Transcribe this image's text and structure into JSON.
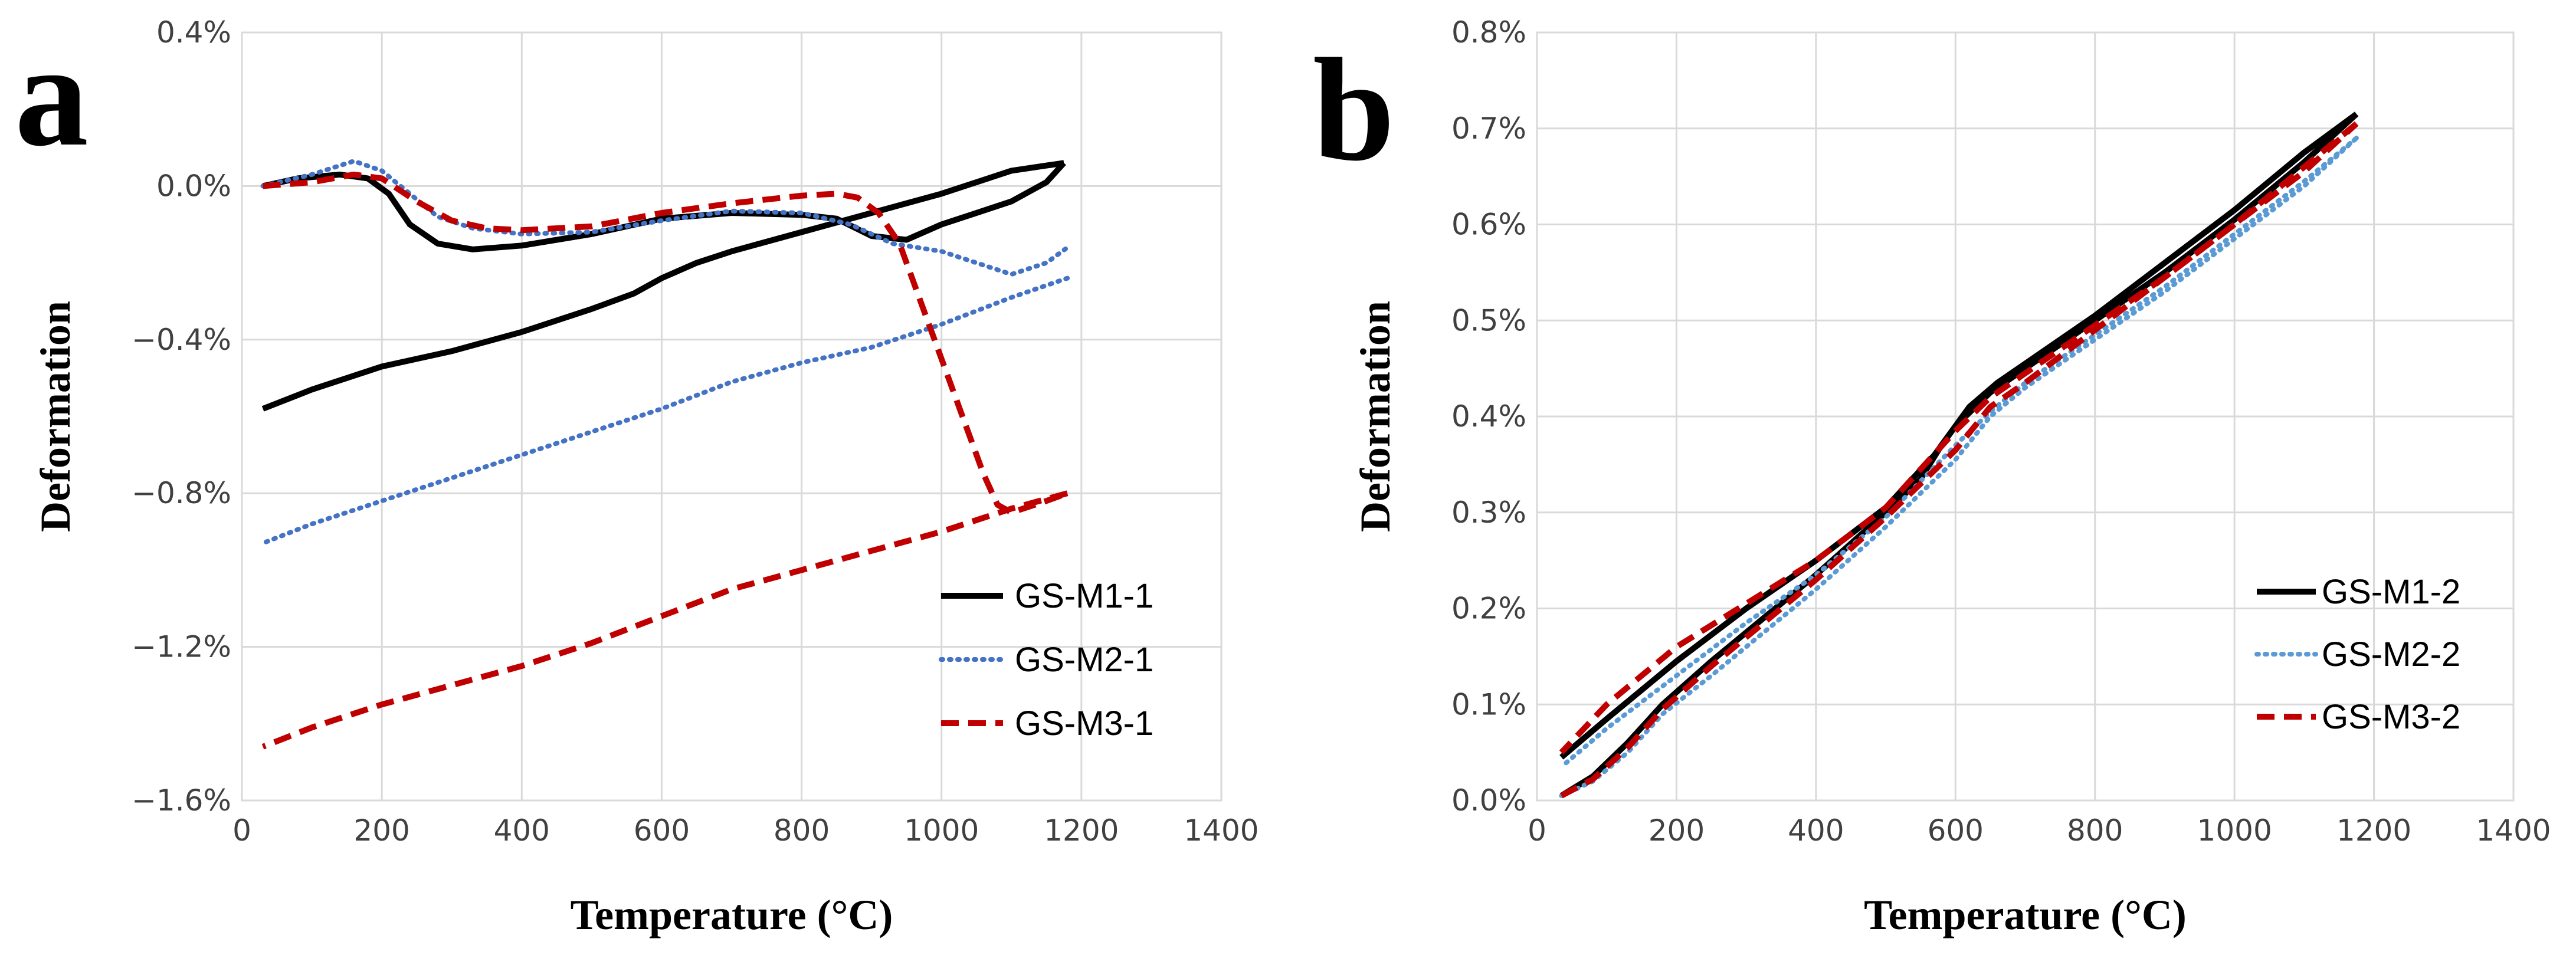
{
  "chart_data": [
    {
      "type": "line",
      "panel_label": "a",
      "xlabel": "Temperature (°C)",
      "ylabel": "Deformation",
      "xlim": [
        0,
        1400
      ],
      "ylim": [
        -1.6,
        0.4
      ],
      "x_ticks": [
        0,
        200,
        400,
        600,
        800,
        1000,
        1200,
        1400
      ],
      "x_tick_labels": [
        "0",
        "200",
        "400",
        "600",
        "800",
        "1000",
        "1200",
        "1400"
      ],
      "y_ticks": [
        0.4,
        0.0,
        -0.4,
        -0.8,
        -1.2,
        -1.6
      ],
      "y_tick_labels": [
        "0.4%",
        "0.0%",
        "−0.4%",
        "−0.8%",
        "−1.2%",
        "−1.6%"
      ],
      "grid": true,
      "legend_position": "bottom-right",
      "series": [
        {
          "name": "GS-M1-1",
          "color": "#000000",
          "style": "solid",
          "heating": [
            [
              30,
              0.0
            ],
            [
              80,
              0.02
            ],
            [
              140,
              0.03
            ],
            [
              180,
              0.02
            ],
            [
              210,
              -0.02
            ],
            [
              240,
              -0.1
            ],
            [
              280,
              -0.15
            ],
            [
              330,
              -0.165
            ],
            [
              400,
              -0.155
            ],
            [
              500,
              -0.125
            ],
            [
              600,
              -0.085
            ],
            [
              700,
              -0.07
            ],
            [
              800,
              -0.075
            ],
            [
              850,
              -0.085
            ],
            [
              900,
              -0.13
            ],
            [
              950,
              -0.14
            ],
            [
              1000,
              -0.1
            ],
            [
              1050,
              -0.07
            ],
            [
              1100,
              -0.04
            ],
            [
              1150,
              0.01
            ],
            [
              1175,
              0.06
            ]
          ],
          "cooling": [
            [
              1175,
              0.06
            ],
            [
              1100,
              0.04
            ],
            [
              1000,
              -0.02
            ],
            [
              900,
              -0.07
            ],
            [
              800,
              -0.12
            ],
            [
              700,
              -0.17
            ],
            [
              650,
              -0.2
            ],
            [
              600,
              -0.24
            ],
            [
              560,
              -0.28
            ],
            [
              500,
              -0.32
            ],
            [
              400,
              -0.38
            ],
            [
              300,
              -0.43
            ],
            [
              200,
              -0.47
            ],
            [
              100,
              -0.53
            ],
            [
              30,
              -0.58
            ]
          ]
        },
        {
          "name": "GS-M2-1",
          "color": "#4472c4",
          "style": "dotted",
          "heating": [
            [
              30,
              0.0
            ],
            [
              100,
              0.03
            ],
            [
              160,
              0.065
            ],
            [
              200,
              0.04
            ],
            [
              240,
              -0.02
            ],
            [
              280,
              -0.08
            ],
            [
              330,
              -0.11
            ],
            [
              400,
              -0.125
            ],
            [
              500,
              -0.12
            ],
            [
              600,
              -0.09
            ],
            [
              700,
              -0.065
            ],
            [
              800,
              -0.07
            ],
            [
              870,
              -0.1
            ],
            [
              930,
              -0.15
            ],
            [
              1000,
              -0.17
            ],
            [
              1050,
              -0.2
            ],
            [
              1100,
              -0.23
            ],
            [
              1150,
              -0.2
            ],
            [
              1180,
              -0.16
            ]
          ],
          "cooling": [
            [
              1180,
              -0.24
            ],
            [
              1100,
              -0.29
            ],
            [
              1000,
              -0.36
            ],
            [
              900,
              -0.42
            ],
            [
              800,
              -0.46
            ],
            [
              700,
              -0.51
            ],
            [
              600,
              -0.58
            ],
            [
              500,
              -0.64
            ],
            [
              400,
              -0.7
            ],
            [
              300,
              -0.76
            ],
            [
              200,
              -0.82
            ],
            [
              100,
              -0.88
            ],
            [
              30,
              -0.93
            ]
          ]
        },
        {
          "name": "GS-M3-1",
          "color": "#c00000",
          "style": "dashed",
          "heating": [
            [
              30,
              0.0
            ],
            [
              100,
              0.01
            ],
            [
              160,
              0.03
            ],
            [
              200,
              0.02
            ],
            [
              250,
              -0.04
            ],
            [
              300,
              -0.09
            ],
            [
              350,
              -0.11
            ],
            [
              400,
              -0.115
            ],
            [
              500,
              -0.105
            ],
            [
              600,
              -0.07
            ],
            [
              700,
              -0.045
            ],
            [
              800,
              -0.025
            ],
            [
              850,
              -0.02
            ],
            [
              880,
              -0.03
            ],
            [
              910,
              -0.07
            ],
            [
              940,
              -0.15
            ],
            [
              960,
              -0.25
            ],
            [
              980,
              -0.35
            ],
            [
              1000,
              -0.45
            ],
            [
              1030,
              -0.6
            ],
            [
              1060,
              -0.75
            ],
            [
              1080,
              -0.83
            ],
            [
              1100,
              -0.85
            ],
            [
              1150,
              -0.82
            ],
            [
              1180,
              -0.8
            ]
          ],
          "cooling": [
            [
              1180,
              -0.8
            ],
            [
              1100,
              -0.84
            ],
            [
              1000,
              -0.9
            ],
            [
              900,
              -0.95
            ],
            [
              800,
              -1.0
            ],
            [
              700,
              -1.05
            ],
            [
              600,
              -1.12
            ],
            [
              500,
              -1.19
            ],
            [
              400,
              -1.25
            ],
            [
              300,
              -1.3
            ],
            [
              200,
              -1.35
            ],
            [
              100,
              -1.41
            ],
            [
              30,
              -1.46
            ]
          ]
        }
      ]
    },
    {
      "type": "line",
      "panel_label": "b",
      "xlabel": "Temperature (°C)",
      "ylabel": "Deformation",
      "xlim": [
        0,
        1400
      ],
      "ylim": [
        0.0,
        0.8
      ],
      "x_ticks": [
        0,
        200,
        400,
        600,
        800,
        1000,
        1200,
        1400
      ],
      "x_tick_labels": [
        "0",
        "200",
        "400",
        "600",
        "800",
        "1000",
        "1200",
        "1400"
      ],
      "y_ticks": [
        0.8,
        0.7,
        0.6,
        0.5,
        0.4,
        0.3,
        0.2,
        0.1,
        0.0
      ],
      "y_tick_labels": [
        "0.8%",
        "0.7%",
        "0.6%",
        "0.5%",
        "0.4%",
        "0.3%",
        "0.2%",
        "0.1%",
        "0.0%"
      ],
      "grid": true,
      "legend_position": "bottom-right",
      "series": [
        {
          "name": "GS-M1-2",
          "color": "#000000",
          "style": "solid",
          "heating": [
            [
              35,
              0.005
            ],
            [
              80,
              0.025
            ],
            [
              130,
              0.06
            ],
            [
              180,
              0.1
            ],
            [
              250,
              0.145
            ],
            [
              300,
              0.175
            ],
            [
              400,
              0.235
            ],
            [
              500,
              0.3
            ],
            [
              550,
              0.335
            ],
            [
              580,
              0.37
            ],
            [
              620,
              0.41
            ],
            [
              660,
              0.435
            ],
            [
              700,
              0.455
            ],
            [
              800,
              0.505
            ],
            [
              900,
              0.56
            ],
            [
              1000,
              0.615
            ],
            [
              1100,
              0.675
            ],
            [
              1175,
              0.715
            ]
          ],
          "cooling": [
            [
              1175,
              0.715
            ],
            [
              1100,
              0.665
            ],
            [
              1000,
              0.605
            ],
            [
              900,
              0.55
            ],
            [
              800,
              0.5
            ],
            [
              700,
              0.45
            ],
            [
              650,
              0.425
            ],
            [
              600,
              0.39
            ],
            [
              570,
              0.36
            ],
            [
              500,
              0.305
            ],
            [
              400,
              0.25
            ],
            [
              300,
              0.2
            ],
            [
              200,
              0.145
            ],
            [
              100,
              0.085
            ],
            [
              35,
              0.045
            ]
          ]
        },
        {
          "name": "GS-M2-2",
          "color": "#5b9bd5",
          "style": "dotted",
          "heating": [
            [
              35,
              0.005
            ],
            [
              80,
              0.02
            ],
            [
              130,
              0.05
            ],
            [
              180,
              0.09
            ],
            [
              250,
              0.13
            ],
            [
              300,
              0.16
            ],
            [
              400,
              0.22
            ],
            [
              500,
              0.285
            ],
            [
              600,
              0.355
            ],
            [
              650,
              0.4
            ],
            [
              700,
              0.43
            ],
            [
              800,
              0.48
            ],
            [
              900,
              0.53
            ],
            [
              1000,
              0.585
            ],
            [
              1100,
              0.64
            ],
            [
              1175,
              0.69
            ]
          ],
          "cooling": [
            [
              1175,
              0.69
            ],
            [
              1100,
              0.645
            ],
            [
              1000,
              0.59
            ],
            [
              900,
              0.535
            ],
            [
              800,
              0.485
            ],
            [
              700,
              0.435
            ],
            [
              650,
              0.405
            ],
            [
              600,
              0.37
            ],
            [
              500,
              0.295
            ],
            [
              400,
              0.235
            ],
            [
              300,
              0.185
            ],
            [
              200,
              0.13
            ],
            [
              100,
              0.075
            ],
            [
              35,
              0.035
            ]
          ]
        },
        {
          "name": "GS-M3-2",
          "color": "#c00000",
          "style": "dashed",
          "heating": [
            [
              35,
              0.005
            ],
            [
              80,
              0.022
            ],
            [
              130,
              0.055
            ],
            [
              180,
              0.095
            ],
            [
              250,
              0.14
            ],
            [
              300,
              0.17
            ],
            [
              400,
              0.23
            ],
            [
              500,
              0.295
            ],
            [
              600,
              0.365
            ],
            [
              650,
              0.41
            ],
            [
              700,
              0.435
            ],
            [
              800,
              0.49
            ],
            [
              900,
              0.545
            ],
            [
              1000,
              0.6
            ],
            [
              1100,
              0.655
            ],
            [
              1175,
              0.705
            ]
          ],
          "cooling": [
            [
              1175,
              0.705
            ],
            [
              1100,
              0.66
            ],
            [
              1000,
              0.6
            ],
            [
              900,
              0.545
            ],
            [
              800,
              0.495
            ],
            [
              700,
              0.445
            ],
            [
              650,
              0.42
            ],
            [
              600,
              0.385
            ],
            [
              500,
              0.305
            ],
            [
              400,
              0.25
            ],
            [
              300,
              0.205
            ],
            [
              200,
              0.16
            ],
            [
              100,
              0.1
            ],
            [
              35,
              0.05
            ]
          ]
        }
      ]
    }
  ]
}
